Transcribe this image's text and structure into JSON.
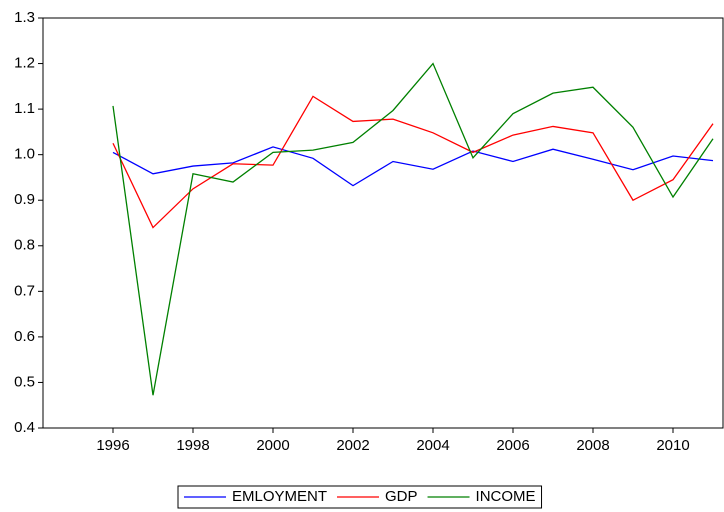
{
  "chart_data": {
    "type": "line",
    "x": [
      1996,
      1997,
      1998,
      1999,
      2000,
      2001,
      2002,
      2003,
      2004,
      2005,
      2006,
      2007,
      2008,
      2009,
      2010,
      2011
    ],
    "series": [
      {
        "name": "EMLOYMENT",
        "color": "#0000ff",
        "values": [
          1.005,
          0.958,
          0.975,
          0.982,
          1.017,
          0.992,
          0.932,
          0.985,
          0.968,
          1.008,
          0.985,
          1.012,
          0.99,
          0.967,
          0.997,
          0.987
        ]
      },
      {
        "name": "GDP",
        "color": "#ff0000",
        "values": [
          1.025,
          0.84,
          0.925,
          0.98,
          0.977,
          1.128,
          1.073,
          1.078,
          1.048,
          1.005,
          1.043,
          1.062,
          1.048,
          0.9,
          0.945,
          1.068
        ]
      },
      {
        "name": "INCOME",
        "color": "#008000",
        "values": [
          1.107,
          0.472,
          0.958,
          0.94,
          1.005,
          1.01,
          1.027,
          1.097,
          1.2,
          0.993,
          1.09,
          1.135,
          1.148,
          1.06,
          0.907,
          1.035
        ]
      }
    ],
    "xlim": [
      1994.25,
      2011.275
    ],
    "xticks": [
      1996,
      1998,
      2000,
      2002,
      2004,
      2006,
      2008,
      2010
    ],
    "ylim": [
      0.4,
      1.3
    ],
    "yticks": [
      0.4,
      0.5,
      0.6,
      0.7,
      0.8,
      0.9,
      {
        "value": 1,
        "label": "1.0"
      },
      1.1,
      1.2,
      1.3
    ],
    "legend": "bottom"
  }
}
